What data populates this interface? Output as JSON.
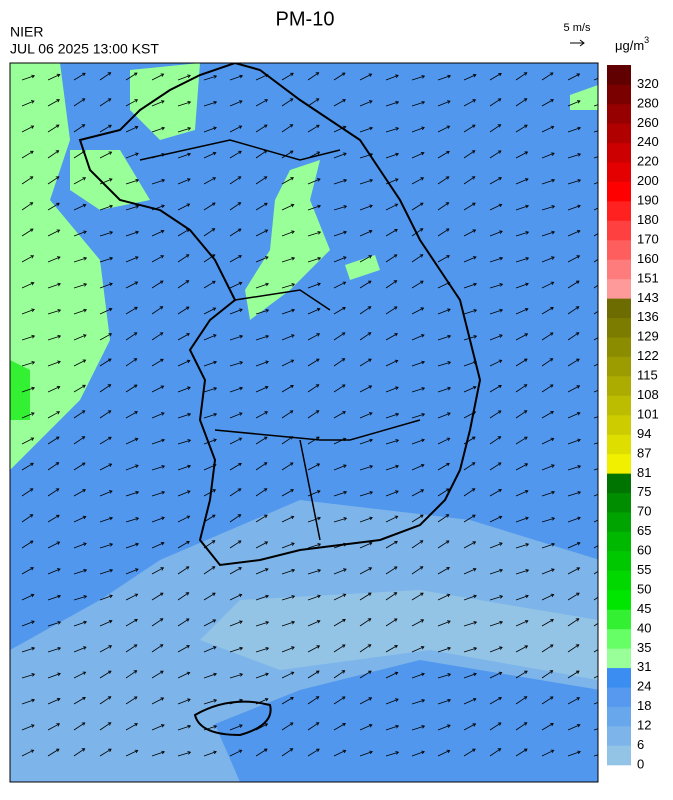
{
  "header": {
    "title": "PM-10",
    "agency": "NIER",
    "timestamp": "JUL 06 2025 13:00 KST",
    "wind_scale": "5 m/s"
  },
  "colorbar": {
    "unit": "μg/m",
    "unit_exponent": "3",
    "labels": [
      0,
      6,
      12,
      18,
      24,
      31,
      35,
      40,
      45,
      50,
      55,
      60,
      65,
      70,
      75,
      81,
      87,
      94,
      101,
      108,
      115,
      122,
      129,
      136,
      143,
      151,
      160,
      170,
      180,
      190,
      200,
      220,
      240,
      260,
      280,
      320
    ],
    "colors": [
      "#93c4e6",
      "#7db5ea",
      "#68a7ec",
      "#5699ee",
      "#3b8df2",
      "#99ff99",
      "#66ff66",
      "#33f033",
      "#00e600",
      "#00d800",
      "#00c800",
      "#00b800",
      "#00a400",
      "#008e00",
      "#007400",
      "#f0f000",
      "#dede00",
      "#cccc00",
      "#bcbc00",
      "#acac00",
      "#9c9c00",
      "#8c8c00",
      "#7c7c00",
      "#6c6c00",
      "#ff9a9a",
      "#ff7c7c",
      "#ff5e5e",
      "#ff4040",
      "#ff2020",
      "#ff0000",
      "#e40000",
      "#cc0000",
      "#b00000",
      "#960000",
      "#7a0000",
      "#600000"
    ]
  }
}
